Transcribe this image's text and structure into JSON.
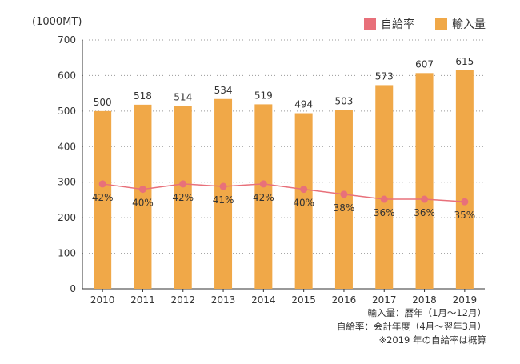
{
  "chart_data": {
    "type": "bar+line",
    "unit_label": "(1000MT)",
    "categories": [
      "2010",
      "2011",
      "2012",
      "2013",
      "2014",
      "2015",
      "2016",
      "2017",
      "2018",
      "2019"
    ],
    "ylim": [
      0,
      700
    ],
    "yticks": [
      0,
      100,
      200,
      300,
      400,
      500,
      600,
      700
    ],
    "grid": true,
    "legend_position": "top-right",
    "series": [
      {
        "name": "自給率",
        "kind": "line",
        "color": "#e8707a",
        "values": [
          295,
          280,
          295,
          288,
          295,
          280,
          266,
          252,
          252,
          245
        ],
        "labels": [
          "42%",
          "40%",
          "42%",
          "41%",
          "42%",
          "40%",
          "38%",
          "36%",
          "36%",
          "35%"
        ]
      },
      {
        "name": "輸入量",
        "kind": "bar",
        "color": "#f0a848",
        "values": [
          500,
          518,
          514,
          534,
          519,
          494,
          503,
          573,
          607,
          615
        ]
      }
    ],
    "notes": [
      "輸入量：暦年（1月〜12月）",
      "自給率：会計年度（4月〜翌年3月）",
      "※2019 年の自給率は概算"
    ]
  }
}
